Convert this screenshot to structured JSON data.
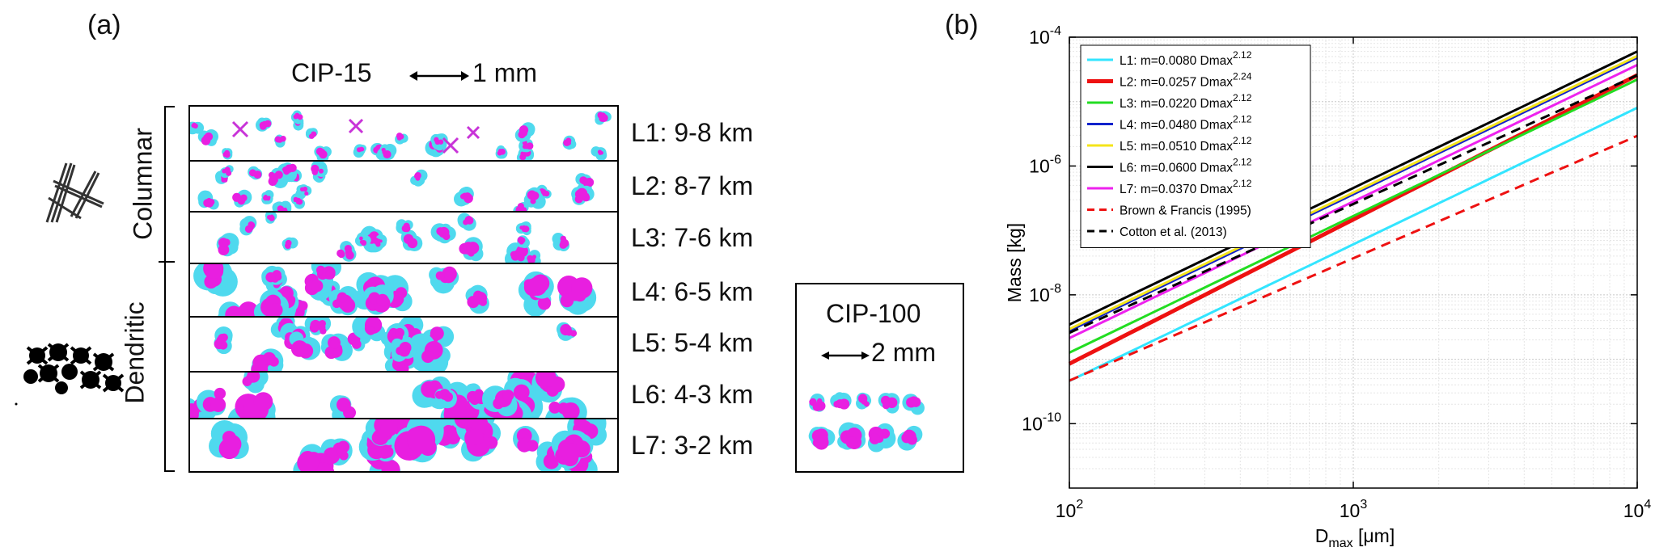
{
  "panel_a": {
    "label": "(a)",
    "instrument_title": "CIP-15",
    "scale_text": "1 mm",
    "group_columnar": "Columnar",
    "group_dendritic": "Dendritic",
    "levels": [
      "L1: 9-8 km",
      "L2: 8-7 km",
      "L3: 7-6 km",
      "L4: 6-5 km",
      "L5: 5-4 km",
      "L6: 4-3 km",
      "L7: 3-2 km"
    ],
    "inset": {
      "title": "CIP-100",
      "scale_text": "2 mm"
    }
  },
  "panel_b": {
    "label": "(b)"
  },
  "chart_data": {
    "type": "line",
    "title": "",
    "xlabel": "D",
    "xlabel_sub": "max",
    "xlabel_units": "[μm]",
    "ylabel": "Mass [kg]",
    "xscale": "log",
    "yscale": "log",
    "xlim": [
      100,
      10000
    ],
    "ylim": [
      1e-11,
      0.0001
    ],
    "xticks": [
      {
        "base": "10",
        "exp": "2"
      },
      {
        "base": "10",
        "exp": "3"
      },
      {
        "base": "10",
        "exp": "4"
      }
    ],
    "yticks": [
      {
        "base": "10",
        "exp": "-10"
      },
      {
        "base": "10",
        "exp": "-8"
      },
      {
        "base": "10",
        "exp": "-6"
      },
      {
        "base": "10",
        "exp": "-4"
      }
    ],
    "grid": true,
    "legend_position": "top-left",
    "series": [
      {
        "name": "L1: m=0.0080 Dmax",
        "exp": "2.12",
        "a": 0.008,
        "b": 2.12,
        "color": "#33e5ff",
        "style": "solid",
        "width": "normal"
      },
      {
        "name": "L2: m=0.0257 Dmax",
        "exp": "2.24",
        "a": 0.0257,
        "b": 2.24,
        "color": "#ee1111",
        "style": "solid",
        "width": "thick"
      },
      {
        "name": "L3: m=0.0220 Dmax",
        "exp": "2.12",
        "a": 0.022,
        "b": 2.12,
        "color": "#22dd22",
        "style": "solid",
        "width": "normal"
      },
      {
        "name": "L4: m=0.0480 Dmax",
        "exp": "2.12",
        "a": 0.048,
        "b": 2.12,
        "color": "#1122cc",
        "style": "solid",
        "width": "normal"
      },
      {
        "name": "L5: m=0.0510 Dmax",
        "exp": "2.12",
        "a": 0.051,
        "b": 2.12,
        "color": "#f5e51a",
        "style": "solid",
        "width": "normal"
      },
      {
        "name": "L6: m=0.0600 Dmax",
        "exp": "2.12",
        "a": 0.06,
        "b": 2.12,
        "color": "#000000",
        "style": "solid",
        "width": "normal"
      },
      {
        "name": "L7: m=0.0370 Dmax",
        "exp": "2.12",
        "a": 0.037,
        "b": 2.12,
        "color": "#ee22ee",
        "style": "solid",
        "width": "normal"
      },
      {
        "name": "Brown & Francis (1995)",
        "exp": "",
        "a": 0.00294,
        "b": 1.9,
        "color": "#ee1111",
        "style": "dashed",
        "width": "normal"
      },
      {
        "name": "Cotton et al. (2013)",
        "exp": "",
        "a": 0.0257,
        "b": 2.0,
        "color": "#000000",
        "style": "dashed",
        "width": "normal"
      }
    ]
  }
}
